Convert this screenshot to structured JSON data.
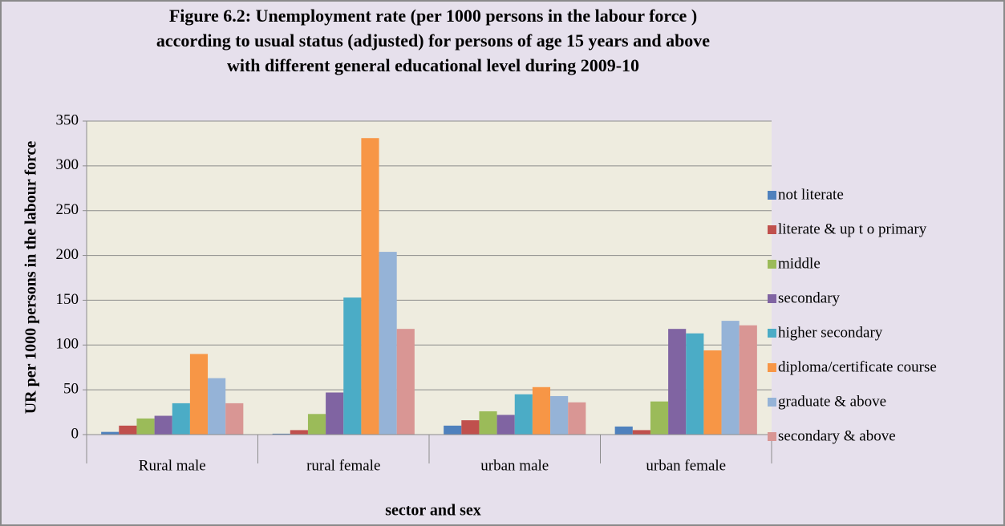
{
  "chart_data": {
    "type": "bar",
    "title": [
      "Figure 6.2: Unemployment rate (per 1000 persons in the labour force )",
      "according to usual status (adjusted) for persons of age 15 years and above",
      "with different general educational level during 2009-10"
    ],
    "x_label": "sector and sex",
    "y_label": "UR per 1000 persons in the labour force",
    "categories": [
      "Rural male",
      "rural female",
      "urban male",
      "urban female"
    ],
    "series": [
      {
        "name": "not  literate",
        "color": "#4f81bd",
        "values": [
          3,
          1,
          10,
          9
        ]
      },
      {
        "name": "literate & up t o primary",
        "color": "#c0504d",
        "values": [
          10,
          5,
          16,
          5
        ]
      },
      {
        "name": "middle",
        "color": "#9bbb59",
        "values": [
          18,
          23,
          26,
          37
        ]
      },
      {
        "name": "secondary",
        "color": "#8064a2",
        "values": [
          21,
          47,
          22,
          118
        ]
      },
      {
        "name": "higher secondary",
        "color": "#4bacc6",
        "values": [
          35,
          153,
          45,
          113
        ]
      },
      {
        "name": "diploma/certificate course",
        "color": "#f79646",
        "values": [
          90,
          331,
          53,
          94
        ]
      },
      {
        "name": "graduate & above",
        "color": "#95b3d7",
        "values": [
          63,
          204,
          43,
          127
        ]
      },
      {
        "name": "secondary & above",
        "color": "#d99694",
        "values": [
          35,
          118,
          36,
          122
        ]
      }
    ],
    "ylim": [
      0,
      350
    ],
    "yticks": [
      0,
      50,
      100,
      150,
      200,
      250,
      300,
      350
    ],
    "grid": true,
    "legend": "right"
  }
}
